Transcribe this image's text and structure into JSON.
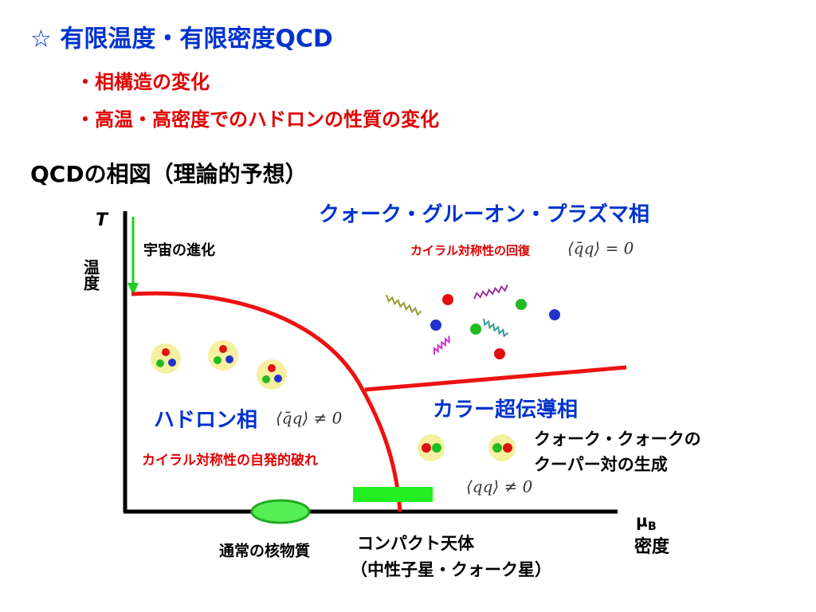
{
  "header": {
    "title": "☆ 有限温度・有限密度QCD",
    "bullets": [
      "・相構造の変化",
      "・高温・高密度でのハドロンの性質の変化"
    ]
  },
  "diagram": {
    "heading": "QCDの相図（理論的予想）",
    "y_axis": {
      "symbol": "T",
      "name": "温度"
    },
    "x_axis": {
      "symbol": "μ",
      "subscript": "B",
      "name": "密度"
    },
    "qgp": {
      "label": "クォーク・グルーオン・プラズマ相",
      "note": "カイラル対称性の回復",
      "formula": "⟨q̄q⟩ = 0"
    },
    "universe": "宇宙の進化",
    "hadron": {
      "label": "ハドロン相",
      "formula": "⟨q̄q⟩ ≠ 0",
      "note": "カイラル対称性の自発的破れ"
    },
    "color_sc": {
      "label": "カラー超伝導相",
      "note": [
        "クォーク・クォークの",
        "クーパー対の生成"
      ],
      "formula": "⟨qq⟩ ≠ 0"
    },
    "nuclear_matter": "通常の核物質",
    "compact_star": [
      "コンパクト天体",
      "（中性子星・クォーク星）"
    ]
  }
}
